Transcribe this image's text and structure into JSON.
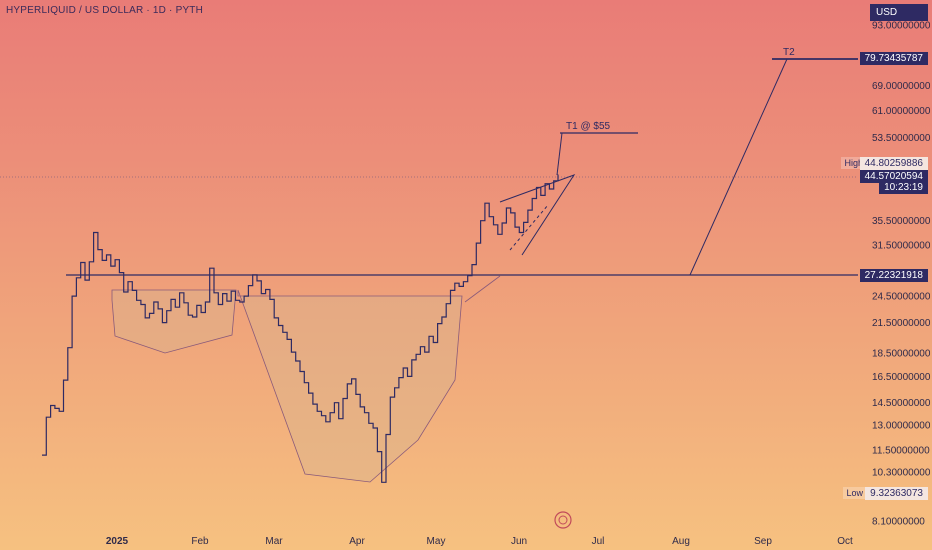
{
  "header": {
    "title": "HYPERLIQUID / US DOLLAR · 1D · PYTH"
  },
  "axis": {
    "currency": "USD"
  },
  "price_axis_ticks": [
    "93.00000000",
    "79.73435787",
    "69.00000000",
    "61.00000000",
    "53.50000000",
    "44.80259886",
    "35.50000000",
    "31.50000000",
    "27.22321918",
    "24.50000000",
    "21.50000000",
    "18.50000000",
    "16.50000000",
    "14.50000000",
    "13.00000000",
    "11.50000000",
    "10.30000000",
    "9.32363073",
    "8.10000000"
  ],
  "price_tags": {
    "t2": "79.73435787",
    "high": "44.80259886",
    "current": "44.57020594",
    "countdown": "10:23:19",
    "neckline": "27.22321918",
    "low": "9.32363073"
  },
  "side_labels": {
    "high": "High",
    "low": "Low"
  },
  "annotations": {
    "t1": "T1 @ $55",
    "t2": "T2"
  },
  "x_axis": [
    "2025",
    "Feb",
    "Mar",
    "Apr",
    "May",
    "Jun",
    "Jul",
    "Aug",
    "Sep",
    "Oct"
  ],
  "colors": {
    "line": "#2e2a63",
    "fill": "#d9b38f",
    "bg_top": "#e97c77",
    "bg_bottom": "#f6c180"
  },
  "chart_data": {
    "type": "line",
    "series": [
      {
        "values": [
          11.2,
          13.5,
          14.3,
          14.1,
          13.9,
          16.2,
          19.0,
          24.5,
          26.8,
          28.9,
          26.5,
          29.0,
          33.5,
          30.8,
          29.2,
          30.0,
          28.4,
          29.3,
          27.5,
          25.0,
          26.3,
          25.2,
          24.0,
          23.5,
          22.0,
          22.5,
          23.8,
          23.0,
          21.5,
          22.8,
          24.1,
          23.2,
          24.9,
          23.7,
          22.3,
          22.1,
          23.4,
          22.6,
          23.8,
          28.1,
          24.9,
          23.5,
          24.8,
          23.9,
          25.1,
          24.0,
          23.8,
          24.5,
          25.8,
          27.2,
          26.4,
          24.8,
          25.3,
          24.1,
          22.0,
          21.2,
          20.5,
          19.8,
          18.6,
          17.8,
          16.9,
          16.0,
          15.2,
          14.4,
          13.9,
          13.6,
          13.2,
          13.8,
          14.5,
          13.4,
          14.8,
          15.9,
          16.3,
          15.1,
          14.2,
          13.8,
          13.1,
          12.8,
          11.4,
          9.8,
          12.4,
          14.9,
          15.6,
          16.4,
          17.2,
          16.5,
          17.9,
          18.4,
          19.1,
          18.6,
          20.1,
          19.5,
          21.4,
          22.1,
          23.6,
          25.2,
          26.1,
          25.7,
          26.3,
          27.1,
          28.6,
          31.8,
          35.5,
          38.7,
          36.2,
          34.8,
          33.2,
          35.1,
          37.8,
          36.9,
          34.4,
          33.5,
          35.2,
          37.4,
          39.6,
          41.8,
          40.2,
          42.6,
          41.5,
          43.2,
          44.57
        ]
      }
    ],
    "ylim": [
      8.1,
      93
    ],
    "scale": "log",
    "x_ticks": [
      "2025",
      "Feb",
      "Mar",
      "Apr",
      "May",
      "Jun",
      "Jul",
      "Aug",
      "Sep",
      "Oct"
    ],
    "annotations": [
      "T1 @ $55",
      "T2"
    ],
    "levels": {
      "neckline": 27.22321918,
      "t1": 55,
      "t2": 79.73435787,
      "high": 44.80259886,
      "low": 9.32363073
    }
  }
}
